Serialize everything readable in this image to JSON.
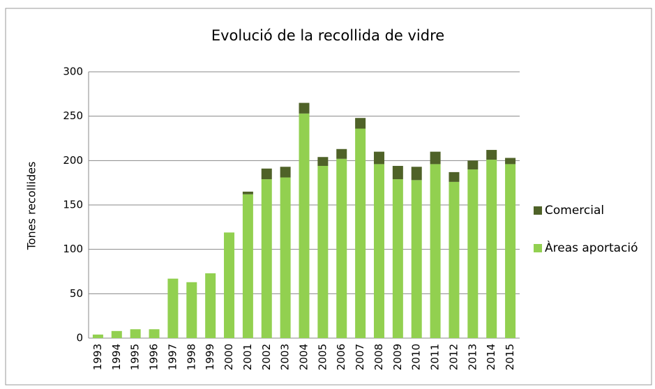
{
  "chart_data": {
    "type": "bar",
    "stacked": true,
    "title": "Evolució de la recollida de vidre",
    "y_label": "Tones  recollides",
    "categories": [
      "1993",
      "1994",
      "1995",
      "1996",
      "1997",
      "1998",
      "1999",
      "2000",
      "2001",
      "2002",
      "2003",
      "2004",
      "2005",
      "2006",
      "2007",
      "2008",
      "2009",
      "2010",
      "2011",
      "2012",
      "2013",
      "2014",
      "2015"
    ],
    "series": [
      {
        "name": "Àreas aportació",
        "color": "#92d050",
        "values": [
          4,
          8,
          10,
          10,
          67,
          63,
          73,
          119,
          162,
          179,
          181,
          253,
          194,
          202,
          236,
          196,
          179,
          178,
          196,
          176,
          190,
          201,
          196
        ]
      },
      {
        "name": "Comercial",
        "color": "#4f6228",
        "values": [
          0,
          0,
          0,
          0,
          0,
          0,
          0,
          0,
          3,
          12,
          12,
          12,
          10,
          11,
          12,
          14,
          15,
          15,
          14,
          11,
          10,
          11,
          7
        ]
      }
    ],
    "ylim": [
      0,
      300
    ],
    "yticks": [
      0,
      50,
      100,
      150,
      200,
      250,
      300
    ],
    "grid": true,
    "legend": "right"
  }
}
